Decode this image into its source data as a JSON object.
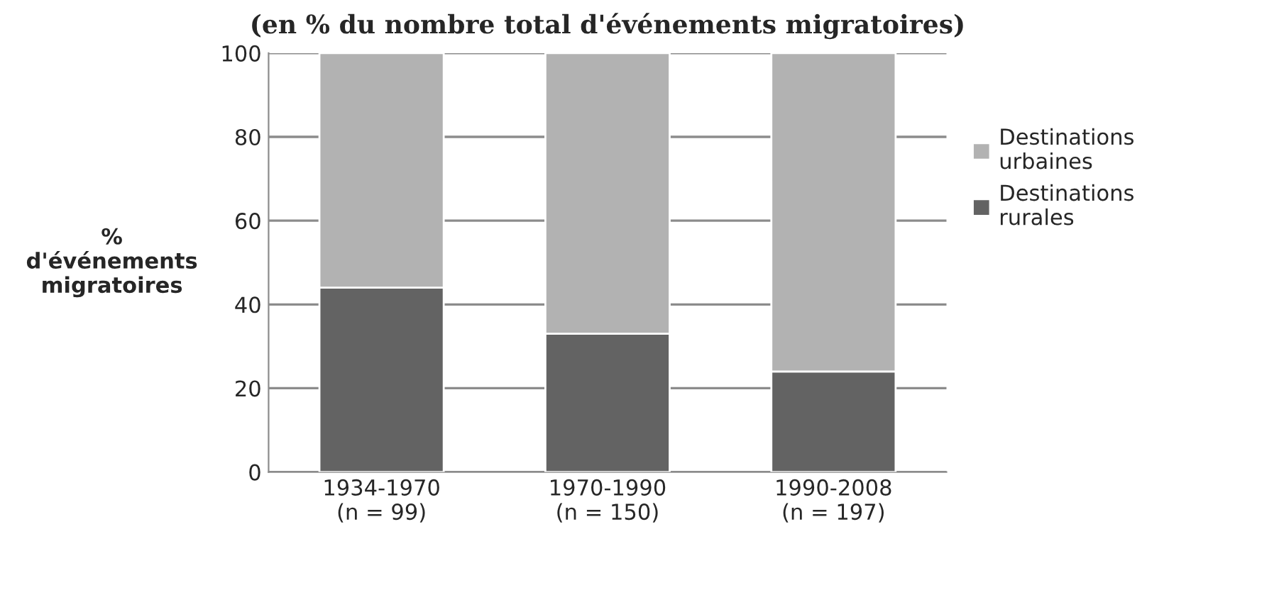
{
  "chart_data": {
    "type": "bar",
    "stacked": true,
    "title": "(en % du nombre total d'événements migratoires)",
    "ylabel": "%\nd'événements\nmigratoires",
    "categories": [
      "1934-1970\n(n = 99)",
      "1970-1990\n(n = 150)",
      "1990-2008\n(n = 197)"
    ],
    "series": [
      {
        "name": "Destinations rurales",
        "color": "#636363",
        "values": [
          44,
          33,
          24
        ]
      },
      {
        "name": "Destinations urbaines",
        "color": "#b2b2b2",
        "values": [
          56,
          67,
          76
        ]
      }
    ],
    "ylim": [
      0,
      100
    ],
    "yticks": [
      0,
      20,
      40,
      60,
      80,
      100
    ],
    "grid": "y",
    "legend": "right"
  }
}
